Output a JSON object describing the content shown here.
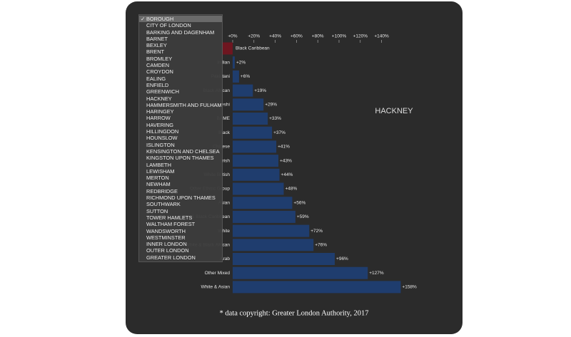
{
  "chart_data": {
    "type": "bar",
    "orientation": "horizontal",
    "title": "HACKNEY",
    "source": "* data copyright: Greater London Authority, 2017",
    "categories": [
      "Black Caribbean",
      "Indian",
      "Pakistani",
      "Black African",
      "Bangladeshi",
      "BAME",
      "Black",
      "Chinese",
      "Irish",
      "White British",
      "Other Ethnic Group",
      "Asian",
      "White & Black Caribbean",
      "White",
      "White & Black African",
      "Arab",
      "Other Mixed",
      "White & Asian"
    ],
    "values": [
      -10,
      2,
      6,
      19,
      29,
      33,
      37,
      41,
      43,
      44,
      48,
      56,
      59,
      72,
      76,
      96,
      127,
      158
    ],
    "value_labels": [
      null,
      "+2%",
      "+6%",
      "+19%",
      "+29%",
      "+33%",
      "+37%",
      "+41%",
      "+43%",
      "+44%",
      "+48%",
      "+56%",
      "+59%",
      "+72%",
      "+76%",
      "+96%",
      "+127%",
      "+158%"
    ],
    "color": "#1f3d6e",
    "negative_color": "#6e1620",
    "xlim": [
      -12,
      160
    ],
    "xticks": [
      {
        "value": 0,
        "label": "+0%"
      },
      {
        "value": 20,
        "label": "+20%"
      },
      {
        "value": 40,
        "label": "+40%"
      },
      {
        "value": 60,
        "label": "+60%"
      },
      {
        "value": 80,
        "label": "+80%"
      },
      {
        "value": 100,
        "label": "+100%"
      },
      {
        "value": 120,
        "label": "+120%"
      },
      {
        "value": 140,
        "label": "+140%"
      }
    ]
  },
  "dropdown": {
    "check": "✓",
    "selected": 0,
    "options": [
      "BOROUGH",
      "CITY OF LONDON",
      "BARKING AND DAGENHAM",
      "BARNET",
      "BEXLEY",
      "BRENT",
      "BROMLEY",
      "CAMDEN",
      "CROYDON",
      "EALING",
      "ENFIELD",
      "GREENWICH",
      "HACKNEY",
      "HAMMERSMITH AND FULHAM",
      "HARINGEY",
      "HARROW",
      "HAVERING",
      "HILLINGDON",
      "HOUNSLOW",
      "ISLINGTON",
      "KENSINGTON AND CHELSEA",
      "KINGSTON UPON THAMES",
      "LAMBETH",
      "LEWISHAM",
      "MERTON",
      "NEWHAM",
      "REDBRIDGE",
      "RICHMOND UPON THAMES",
      "SOUTHWARK",
      "SUTTON",
      "TOWER HAMLETS",
      "WALTHAM FOREST",
      "WANDSWORTH",
      "WESTMINSTER",
      "INNER LONDON",
      "OUTER LONDON",
      "GREATER LONDON"
    ]
  }
}
